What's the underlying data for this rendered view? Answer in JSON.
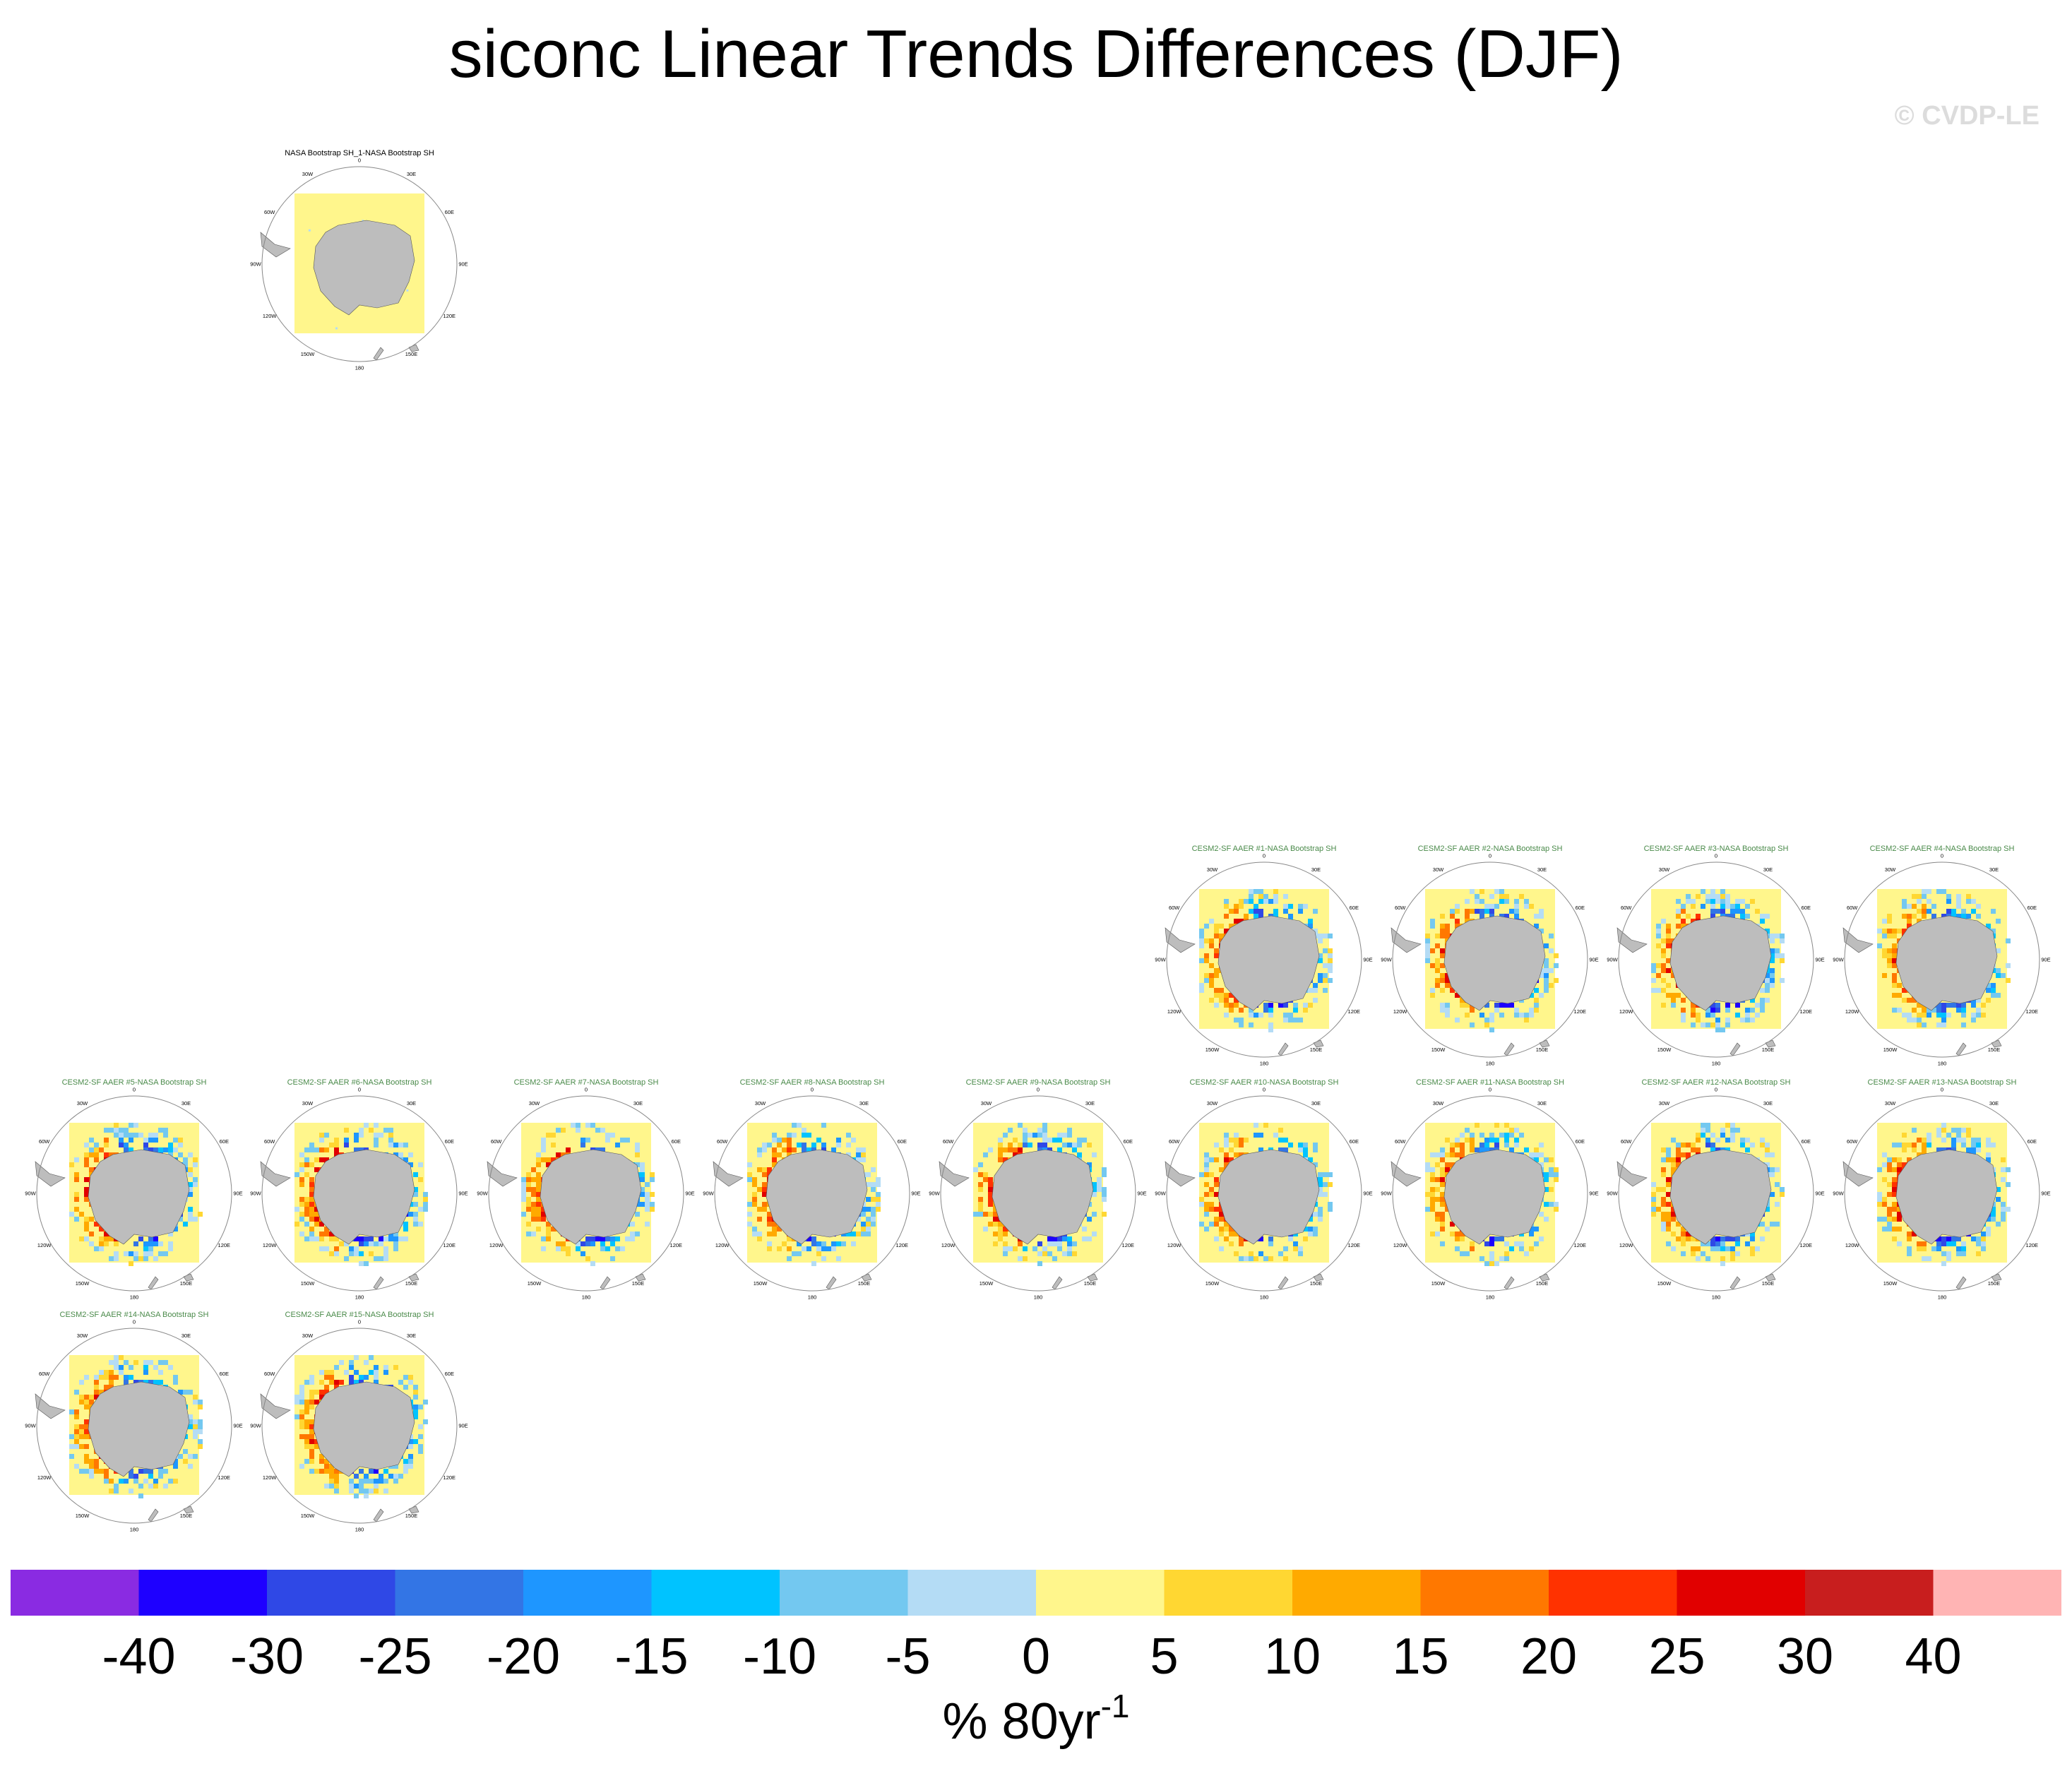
{
  "page": {
    "title": "siconc Linear Trends Differences (DJF)",
    "copyright": "© CVDP-LE"
  },
  "panel_common": {
    "lon_labels": [
      "0",
      "30E",
      "60E",
      "90E",
      "120E",
      "150E",
      "180",
      "150W",
      "120W",
      "90W",
      "60W",
      "30W"
    ],
    "obs_title_color": "#000000",
    "model_title_color": "#4a8a4a",
    "land_color": "#bdbdbd"
  },
  "panels": [
    {
      "title": "NASA Bootstrap SH_1-NASA Bootstrap SH",
      "kind": "obs"
    },
    {
      "title": "CESM2-SF AAER #1-NASA Bootstrap SH",
      "kind": "model"
    },
    {
      "title": "CESM2-SF AAER #2-NASA Bootstrap SH",
      "kind": "model"
    },
    {
      "title": "CESM2-SF AAER #3-NASA Bootstrap SH",
      "kind": "model"
    },
    {
      "title": "CESM2-SF AAER #4-NASA Bootstrap SH",
      "kind": "model"
    },
    {
      "title": "CESM2-SF AAER #5-NASA Bootstrap SH",
      "kind": "model"
    },
    {
      "title": "CESM2-SF AAER #6-NASA Bootstrap SH",
      "kind": "model"
    },
    {
      "title": "CESM2-SF AAER #7-NASA Bootstrap SH",
      "kind": "model"
    },
    {
      "title": "CESM2-SF AAER #8-NASA Bootstrap SH",
      "kind": "model"
    },
    {
      "title": "CESM2-SF AAER #9-NASA Bootstrap SH",
      "kind": "model"
    },
    {
      "title": "CESM2-SF AAER #10-NASA Bootstrap SH",
      "kind": "model"
    },
    {
      "title": "CESM2-SF AAER #11-NASA Bootstrap SH",
      "kind": "model"
    },
    {
      "title": "CESM2-SF AAER #12-NASA Bootstrap SH",
      "kind": "model"
    },
    {
      "title": "CESM2-SF AAER #13-NASA Bootstrap SH",
      "kind": "model"
    },
    {
      "title": "CESM2-SF AAER #14-NASA Bootstrap SH",
      "kind": "model"
    },
    {
      "title": "CESM2-SF AAER #15-NASA Bootstrap SH",
      "kind": "model"
    }
  ],
  "chart_data": {
    "type": "heatmap",
    "title": "siconc Linear Trends Differences (DJF)",
    "colorbar": {
      "tick_labels": [
        "-40",
        "-30",
        "-25",
        "-20",
        "-15",
        "-10",
        "-5",
        "0",
        "5",
        "10",
        "15",
        "20",
        "25",
        "30",
        "40"
      ],
      "units_base": "% 80yr",
      "units_sup": "-1",
      "colors": [
        "#8a2be2",
        "#1e00ff",
        "#2f48e6",
        "#3375e5",
        "#1e96ff",
        "#00c3ff",
        "#73c8f0",
        "#b4dcf5",
        "#fff68c",
        "#ffd732",
        "#ffaa00",
        "#ff7800",
        "#ff3200",
        "#e10000",
        "#c81e1e",
        "#ffb4b4"
      ]
    }
  }
}
